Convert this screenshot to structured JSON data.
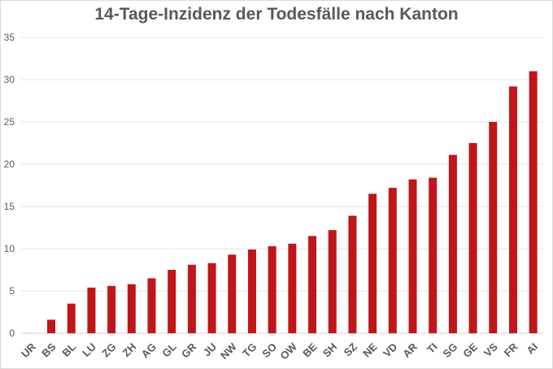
{
  "chart_data": {
    "type": "bar",
    "title": "14-Tage-Inzidenz der Todesfälle nach Kanton",
    "xlabel": "",
    "ylabel": "",
    "categories": [
      "UR",
      "BS",
      "BL",
      "LU",
      "ZG",
      "ZH",
      "AG",
      "GL",
      "GR",
      "JU",
      "NW",
      "TG",
      "SO",
      "OW",
      "BE",
      "SH",
      "SZ",
      "NE",
      "VD",
      "AR",
      "TI",
      "SG",
      "GE",
      "VS",
      "FR",
      "AI"
    ],
    "values": [
      0,
      1.6,
      3.5,
      5.4,
      5.6,
      5.8,
      6.5,
      7.5,
      8.1,
      8.3,
      9.3,
      9.9,
      10.3,
      10.6,
      11.5,
      12.2,
      13.9,
      16.5,
      17.2,
      18.2,
      18.4,
      21.1,
      22.5,
      25.0,
      29.2,
      31.0
    ],
    "ylim": [
      0,
      35
    ],
    "yticks": [
      0,
      5,
      10,
      15,
      20,
      25,
      30,
      35
    ],
    "grid": true,
    "bar_color": "#c0161b",
    "grid_color": "#e6e6e6"
  }
}
